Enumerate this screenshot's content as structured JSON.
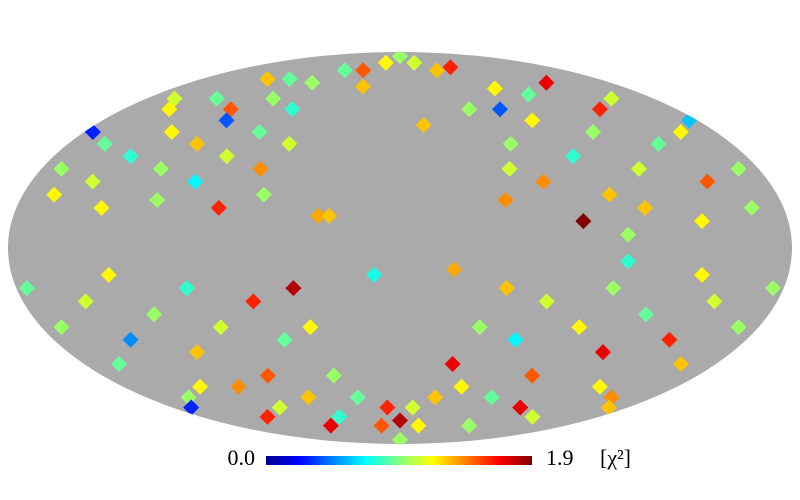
{
  "chart_data": {
    "type": "healpix",
    "projection": "mollweide",
    "mask_color": "#aaaaaa",
    "colormap": "jet",
    "colorbar": {
      "lim": [
        0,
        1.9
      ],
      "ticks": [
        {
          "value": 0,
          "label": "0.0"
        },
        1.9
      ],
      "unit": "[χ²]"
    },
    "pixels": [
      [
        170,
        30,
        1.0
      ],
      [
        160,
        40,
        0.9
      ],
      [
        150,
        25,
        1.1
      ],
      [
        140,
        35,
        0.8
      ],
      [
        130,
        45,
        1.2
      ],
      [
        120,
        30,
        1.0
      ],
      [
        110,
        40,
        1.3
      ],
      [
        100,
        25,
        0.7
      ],
      [
        90,
        35,
        1.1
      ],
      [
        80,
        45,
        0.9
      ],
      [
        70,
        30,
        1.4
      ],
      [
        65,
        20,
        1.0
      ],
      [
        150,
        55,
        1.2
      ],
      [
        130,
        60,
        0.9
      ],
      [
        110,
        55,
        1.5
      ],
      [
        90,
        60,
        1.0
      ],
      [
        70,
        55,
        0.8
      ],
      [
        160,
        60,
        1.1
      ],
      [
        120,
        70,
        1.3
      ],
      [
        100,
        70,
        0.9
      ],
      [
        140,
        15,
        1.2
      ],
      [
        115,
        18,
        1.0
      ],
      [
        85,
        15,
        1.6
      ],
      [
        60,
        40,
        1.1
      ],
      [
        175,
        45,
        0.3
      ],
      [
        165,
        20,
        1.2
      ],
      [
        105,
        50,
        0.4
      ],
      [
        75,
        68,
        1.0
      ],
      [
        -170,
        30,
        1.0
      ],
      [
        -160,
        45,
        1.2
      ],
      [
        -150,
        25,
        1.5
      ],
      [
        -140,
        40,
        0.9
      ],
      [
        -130,
        55,
        1.6
      ],
      [
        -120,
        30,
        1.1
      ],
      [
        -110,
        45,
        1.0
      ],
      [
        -100,
        20,
        1.3
      ],
      [
        -90,
        35,
        0.8
      ],
      [
        -80,
        50,
        1.2
      ],
      [
        -70,
        25,
        1.4
      ],
      [
        -60,
        40,
        1.0
      ],
      [
        -150,
        60,
        1.1
      ],
      [
        -125,
        68,
        1.7
      ],
      [
        -95,
        62,
        0.9
      ],
      [
        -75,
        65,
        1.2
      ],
      [
        -165,
        15,
        1.0
      ],
      [
        -115,
        15,
        1.3
      ],
      [
        -85,
        10,
        1.9
      ],
      [
        -55,
        30,
        1.1
      ],
      [
        -65,
        55,
        0.4
      ],
      [
        -140,
        10,
        1.2
      ],
      [
        -105,
        5,
        1.0
      ],
      [
        -175,
        50,
        0.6
      ],
      [
        -45,
        55,
        1.0
      ],
      [
        -50,
        18,
        1.4
      ],
      [
        40,
        75,
        1.5
      ],
      [
        20,
        80,
        1.2
      ],
      [
        0,
        85,
        1.0
      ],
      [
        -20,
        80,
        1.1
      ],
      [
        -40,
        75,
        1.3
      ],
      [
        60,
        75,
        0.9
      ],
      [
        -60,
        77,
        1.6
      ],
      [
        30,
        66,
        1.3
      ],
      [
        38,
        12,
        1.35
      ],
      [
        33,
        12,
        1.3
      ],
      [
        -14,
        48,
        1.3
      ],
      [
        12,
        -10,
        0.75
      ],
      [
        -25,
        -8,
        1.35
      ],
      [
        170,
        -30,
        1.0
      ],
      [
        160,
        -45,
        0.9
      ],
      [
        150,
        -20,
        1.1
      ],
      [
        140,
        -35,
        0.5
      ],
      [
        130,
        -55,
        1.2
      ],
      [
        120,
        -25,
        1.0
      ],
      [
        110,
        -40,
        1.3
      ],
      [
        100,
        -15,
        0.8
      ],
      [
        90,
        -30,
        1.1
      ],
      [
        80,
        -50,
        1.5
      ],
      [
        70,
        -20,
        1.6
      ],
      [
        60,
        -35,
        0.9
      ],
      [
        50,
        -15,
        1.8
      ],
      [
        45,
        -30,
        1.2
      ],
      [
        150,
        -60,
        1.0
      ],
      [
        120,
        -70,
        1.6
      ],
      [
        95,
        -65,
        1.1
      ],
      [
        65,
        -60,
        1.3
      ],
      [
        40,
        -50,
        1.0
      ],
      [
        175,
        -15,
        0.9
      ],
      [
        165,
        -65,
        0.3
      ],
      [
        135,
        -10,
        1.2
      ],
      [
        105,
        -55,
        1.4
      ],
      [
        75,
        -75,
        1.7
      ],
      [
        55,
        -70,
        0.8
      ],
      [
        -170,
        -30,
        1.0
      ],
      [
        -160,
        -45,
        1.3
      ],
      [
        -150,
        -20,
        1.1
      ],
      [
        -140,
        -35,
        1.6
      ],
      [
        -130,
        -55,
        1.2
      ],
      [
        -120,
        -25,
        0.9
      ],
      [
        -110,
        -40,
        1.7
      ],
      [
        -100,
        -15,
        1.0
      ],
      [
        -90,
        -30,
        1.2
      ],
      [
        -80,
        -50,
        1.5
      ],
      [
        -70,
        -20,
        1.1
      ],
      [
        -60,
        -35,
        0.7
      ],
      [
        -50,
        -15,
        1.3
      ],
      [
        -40,
        -30,
        1.0
      ],
      [
        -150,
        -60,
        1.4
      ],
      [
        -120,
        -70,
        1.1
      ],
      [
        -95,
        -65,
        1.7
      ],
      [
        -65,
        -60,
        0.9
      ],
      [
        -40,
        -55,
        1.2
      ],
      [
        -175,
        -15,
        1.0
      ],
      [
        -30,
        -45,
        1.7
      ],
      [
        -105,
        -5,
        0.8
      ],
      [
        -140,
        -10,
        1.2
      ],
      [
        -75,
        -75,
        1.0
      ],
      [
        -165,
        -65,
        1.3
      ],
      [
        0,
        -85,
        1.0
      ],
      [
        20,
        -75,
        1.5
      ],
      [
        -20,
        -75,
        1.2
      ],
      [
        10,
        -65,
        1.6
      ],
      [
        -10,
        -65,
        1.1
      ],
      [
        30,
        -60,
        0.9
      ],
      [
        -25,
        -60,
        1.3
      ],
      [
        0,
        -72,
        1.8
      ]
    ]
  }
}
